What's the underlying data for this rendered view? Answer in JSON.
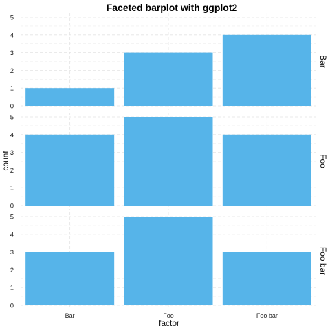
{
  "chart_data": {
    "type": "bar",
    "title": "Faceted barplot with ggplot2",
    "xlabel": "factor",
    "ylabel": "count",
    "categories": [
      "Bar",
      "Foo",
      "Foo bar"
    ],
    "ylim": [
      0,
      5
    ],
    "yticks": [
      "0",
      "1",
      "2",
      "3",
      "4",
      "5"
    ],
    "bar_color": "#56B4E9",
    "grid": true,
    "facet_position": "right",
    "facets": [
      {
        "label": "Bar",
        "values": [
          1,
          3,
          4
        ]
      },
      {
        "label": "Foo",
        "values": [
          4,
          5,
          4
        ]
      },
      {
        "label": "Foo bar",
        "values": [
          3,
          5,
          3
        ]
      }
    ]
  }
}
